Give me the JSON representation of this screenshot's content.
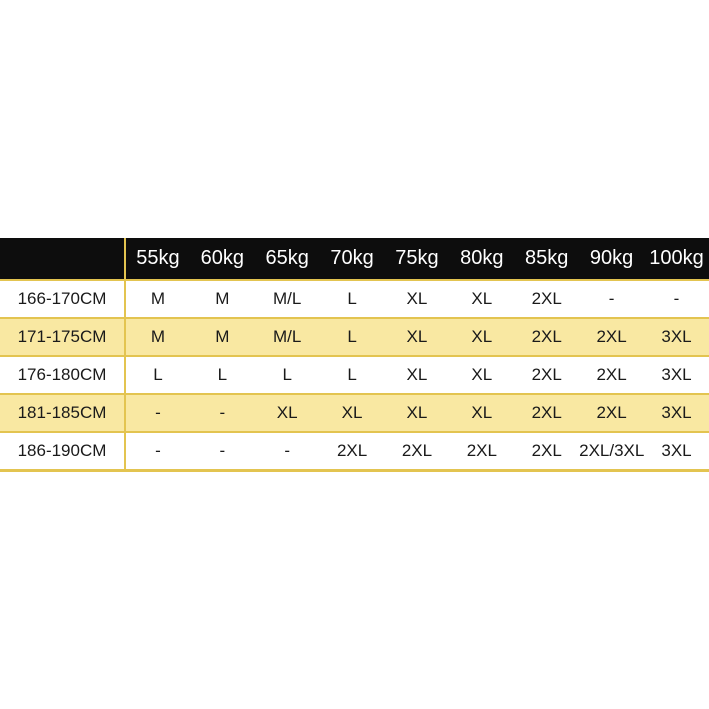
{
  "colors": {
    "header_bg": "#0d0d0d",
    "header_text": "#ffffff",
    "row_alt_bg": "#f9e8a2",
    "border_gold": "#e3c450",
    "body_text": "#1a1a1a",
    "page_bg": "#ffffff"
  },
  "chart_data": {
    "type": "table",
    "title": "",
    "columns": [
      "",
      "55kg",
      "60kg",
      "65kg",
      "70kg",
      "75kg",
      "80kg",
      "85kg",
      "90kg",
      "100kg"
    ],
    "rows": [
      {
        "label": "166-170CM",
        "values": [
          "M",
          "M",
          "M/L",
          "L",
          "XL",
          "XL",
          "2XL",
          "-",
          "-"
        ]
      },
      {
        "label": "171-175CM",
        "values": [
          "M",
          "M",
          "M/L",
          "L",
          "XL",
          "XL",
          "2XL",
          "2XL",
          "3XL"
        ]
      },
      {
        "label": "176-180CM",
        "values": [
          "L",
          "L",
          "L",
          "L",
          "XL",
          "XL",
          "2XL",
          "2XL",
          "3XL"
        ]
      },
      {
        "label": "181-185CM",
        "values": [
          "-",
          "-",
          "XL",
          "XL",
          "XL",
          "XL",
          "2XL",
          "2XL",
          "3XL"
        ]
      },
      {
        "label": "186-190CM",
        "values": [
          "-",
          "-",
          "-",
          "2XL",
          "2XL",
          "2XL",
          "2XL",
          "2XL/3XL",
          "3XL"
        ]
      }
    ]
  }
}
